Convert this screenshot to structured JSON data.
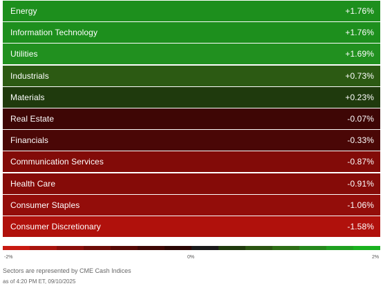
{
  "sectors": [
    {
      "name": "Energy",
      "value": "+1.76%",
      "color": "#1d8f1d"
    },
    {
      "name": "Information Technology",
      "value": "+1.76%",
      "color": "#1d8f1d"
    },
    {
      "name": "Utilities",
      "value": "+1.69%",
      "color": "#21901f"
    },
    {
      "name": "Industrials",
      "value": "+0.73%",
      "color": "#2c5a13"
    },
    {
      "name": "Materials",
      "value": "+0.23%",
      "color": "#1f3a0d"
    },
    {
      "name": "Real Estate",
      "value": "-0.07%",
      "color": "#3e0605"
    },
    {
      "name": "Financials",
      "value": "-0.33%",
      "color": "#4a0706"
    },
    {
      "name": "Communication Services",
      "value": "-0.87%",
      "color": "#820b08"
    },
    {
      "name": "Health Care",
      "value": "-0.91%",
      "color": "#850b08"
    },
    {
      "name": "Consumer Staples",
      "value": "-1.06%",
      "color": "#930d0a"
    },
    {
      "name": "Consumer Discretionary",
      "value": "-1.58%",
      "color": "#b0110c"
    }
  ],
  "legend": {
    "min_label": "-2%",
    "mid_label": "0%",
    "max_label": "2%",
    "colors": [
      "#c81a12",
      "#a8140e",
      "#8a0f0b",
      "#6e0c08",
      "#560906",
      "#3e0705",
      "#2a0604",
      "#1a1a1a",
      "#1f3a0d",
      "#2a5512",
      "#2d6e16",
      "#25881c",
      "#1fa020",
      "#19b21f"
    ]
  },
  "footnote": "Sectors are represented by CME Cash Indices",
  "as_of": "as of 4:20 PM ET, 09/10/2025"
}
